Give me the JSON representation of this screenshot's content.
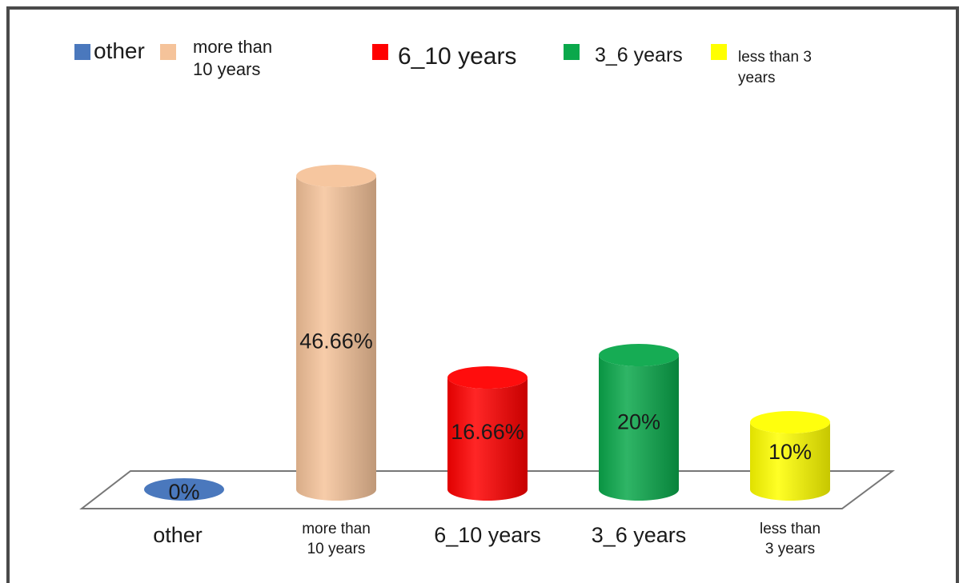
{
  "chart_data": {
    "type": "bar",
    "categories": [
      "other",
      "more than 10 years",
      "6_10 years",
      "3_6 years",
      "less than 3 years"
    ],
    "category_label_lines": [
      [
        "other"
      ],
      [
        "more than",
        "10 years"
      ],
      [
        "6_10 years"
      ],
      [
        "3_6 years"
      ],
      [
        "less than",
        "3 years"
      ]
    ],
    "values": [
      0,
      46.66,
      16.66,
      20,
      10
    ],
    "data_labels": [
      "0%",
      "46.66%",
      "16.66%",
      "20%",
      "10%"
    ],
    "colors": [
      "#4a78bd",
      "#f5c39a",
      "#ff0000",
      "#0aa84b",
      "#ffff00"
    ],
    "legend": {
      "placement": "top",
      "entries": [
        {
          "lines": [
            "other"
          ],
          "color": "#4a78bd"
        },
        {
          "lines": [
            "more than",
            "10 years"
          ],
          "color": "#f5c39a"
        },
        {
          "lines": [
            "6_10 years"
          ],
          "color": "#ff0000"
        },
        {
          "lines": [
            "3_6 years"
          ],
          "color": "#0aa84b"
        },
        {
          "lines": [
            "less than 3",
            "years"
          ],
          "color": "#ffff00"
        }
      ]
    },
    "title": "",
    "xlabel": "",
    "ylabel": "",
    "ylim": [
      0,
      50
    ],
    "grid": false,
    "style": "3d-cylinder"
  }
}
